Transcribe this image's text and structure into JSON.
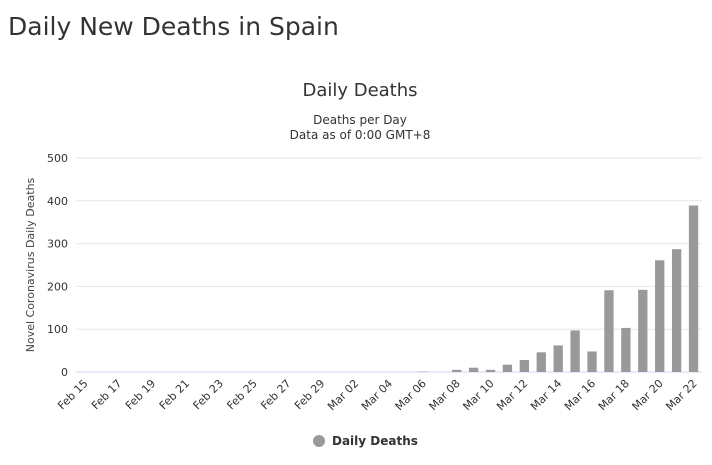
{
  "page": {
    "heading": "Daily New Deaths in Spain"
  },
  "chart_data": {
    "type": "bar",
    "title": "Daily Deaths",
    "subtitle_lines": [
      "Deaths per Day",
      "Data as of 0:00 GMT+8"
    ],
    "ylabel": "Novel Coronavirus Daily Deaths",
    "xlabel": "",
    "ylim": [
      0,
      500
    ],
    "yticks": [
      0,
      100,
      200,
      300,
      400,
      500
    ],
    "categories": [
      "Feb 15",
      "Feb 16",
      "Feb 17",
      "Feb 18",
      "Feb 19",
      "Feb 20",
      "Feb 21",
      "Feb 22",
      "Feb 23",
      "Feb 24",
      "Feb 25",
      "Feb 26",
      "Feb 27",
      "Feb 28",
      "Feb 29",
      "Mar 01",
      "Mar 02",
      "Mar 03",
      "Mar 04",
      "Mar 05",
      "Mar 06",
      "Mar 07",
      "Mar 08",
      "Mar 09",
      "Mar 10",
      "Mar 11",
      "Mar 12",
      "Mar 13",
      "Mar 14",
      "Mar 15",
      "Mar 16",
      "Mar 17",
      "Mar 18",
      "Mar 19",
      "Mar 20",
      "Mar 21",
      "Mar 22"
    ],
    "tick_labels": [
      "Feb 15",
      "Feb 17",
      "Feb 19",
      "Feb 21",
      "Feb 23",
      "Feb 25",
      "Feb 27",
      "Feb 29",
      "Mar 02",
      "Mar 04",
      "Mar 06",
      "Mar 08",
      "Mar 10",
      "Mar 12",
      "Mar 14",
      "Mar 16",
      "Mar 18",
      "Mar 20",
      "Mar 22"
    ],
    "series": [
      {
        "name": "Daily Deaths",
        "color": "#999999",
        "values": [
          0,
          0,
          0,
          0,
          0,
          0,
          0,
          0,
          0,
          0,
          0,
          0,
          0,
          0,
          0,
          0,
          0,
          0,
          0,
          0,
          1,
          0,
          5,
          10,
          5,
          17,
          28,
          46,
          62,
          97,
          48,
          191,
          103,
          192,
          261,
          287,
          389
        ]
      }
    ],
    "legend": {
      "position": "bottom-center",
      "label": "Daily Deaths"
    },
    "grid": true
  }
}
